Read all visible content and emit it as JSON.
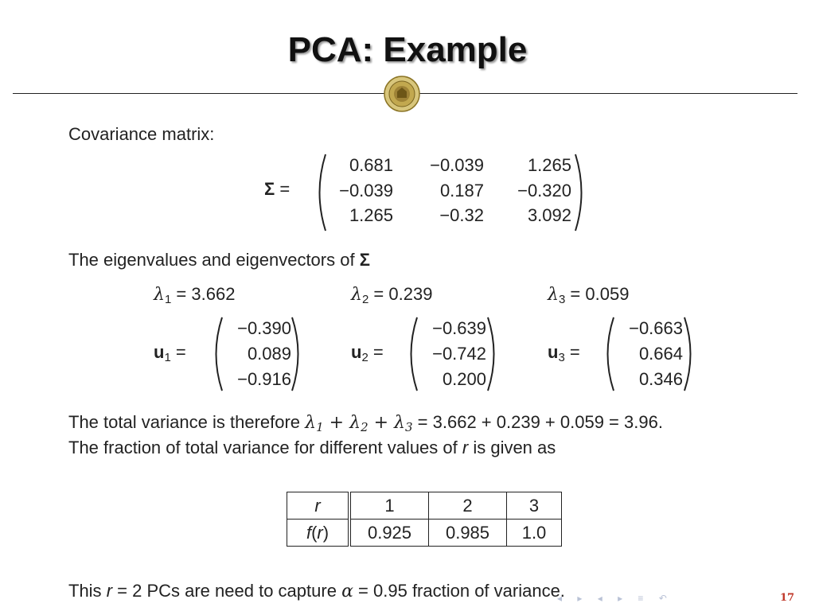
{
  "slide": {
    "title": "PCA: Example",
    "page_number": "17"
  },
  "covariance": {
    "label": "Covariance matrix:",
    "symbol": "Σ",
    "equals": "=",
    "matrix": [
      [
        "0.681",
        "−0.039",
        "1.265"
      ],
      [
        "−0.039",
        "0.187",
        "−0.320"
      ],
      [
        "1.265",
        "−0.32",
        "3.092"
      ]
    ]
  },
  "eigen": {
    "label": "The eigenvalues and eigenvectors of",
    "symbol": "Σ",
    "lambda_symbol": "λ",
    "vector_symbol": "u",
    "equals": "=",
    "items": [
      {
        "index": "1",
        "eigenvalue": "3.662",
        "vector": [
          "−0.390",
          "0.089",
          "−0.916"
        ]
      },
      {
        "index": "2",
        "eigenvalue": "0.239",
        "vector": [
          "−0.639",
          "−0.742",
          "0.200"
        ]
      },
      {
        "index": "3",
        "eigenvalue": "0.059",
        "vector": [
          "−0.663",
          "0.664",
          "0.346"
        ]
      }
    ]
  },
  "total_variance": {
    "prefix": "The total variance is therefore",
    "plus": "+",
    "equation_rhs": "= 3.662 + 0.239 + 0.059 = 3.96.",
    "fraction_text": {
      "before": "The fraction of total variance for different values of",
      "var": "r",
      "after": "is given as"
    }
  },
  "table": {
    "header_label": "r",
    "row_label_func": "f",
    "row_label_arg": "r",
    "columns": [
      "1",
      "2",
      "3"
    ],
    "values": [
      "0.925",
      "0.985",
      "1.0"
    ]
  },
  "conclusion": {
    "prefix": "This",
    "r_var": "r",
    "middle": "= 2 PCs are need to capture",
    "alpha": "α",
    "suffix": "= 0.95 fraction of variance."
  },
  "colors": {
    "page_number": "#c0392b",
    "nav": "#b9c2d6",
    "seal_gold": "#b8a04a"
  }
}
